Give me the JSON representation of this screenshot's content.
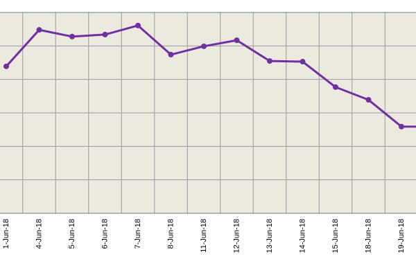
{
  "chart_data": {
    "type": "line",
    "categories": [
      "1-Jun-18",
      "4-Jun-18",
      "5-Jun-18",
      "6-Jun-18",
      "7-Jun-18",
      "8-Jun-18",
      "11-Jun-18",
      "12-Jun-18",
      "13-Jun-18",
      "14-Jun-18",
      "15-Jun-18",
      "18-Jun-18",
      "19-Jun-18",
      null
    ],
    "values": [
      4.39,
      5.48,
      5.28,
      5.34,
      5.61,
      4.74,
      4.99,
      5.17,
      4.55,
      4.53,
      3.77,
      3.39,
      2.59,
      2.59
    ],
    "color": "#7030a0",
    "ylim": [
      0,
      6
    ]
  }
}
